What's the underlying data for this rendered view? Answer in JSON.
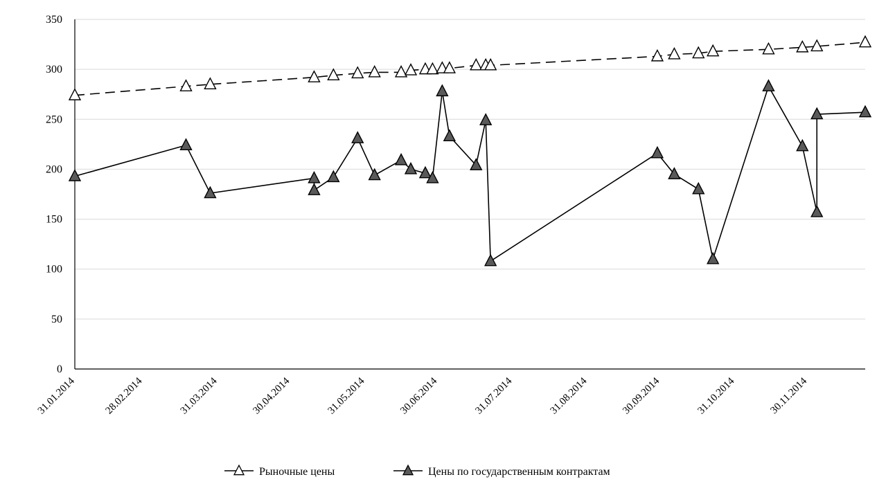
{
  "chart_data": {
    "type": "line",
    "x_axis": {
      "type": "date",
      "tick_labels": [
        "31.01.2014",
        "28.02.2014",
        "31.03.2014",
        "30.04.2014",
        "31.05.2014",
        "30.06.2014",
        "31.07.2014",
        "31.08.2014",
        "30.09.2014",
        "31.10.2014",
        "30.11.2014"
      ]
    },
    "y_axis": {
      "ylim": [
        0,
        350
      ],
      "ticks": [
        0,
        50,
        100,
        150,
        200,
        250,
        300,
        350
      ]
    },
    "grid": true,
    "legend_position": "bottom",
    "series": [
      {
        "name": "Рыночные цены",
        "style": "dashed",
        "marker": "triangle-open",
        "color": "#000000",
        "points": [
          {
            "x": "2014-01-31",
            "y": 274
          },
          {
            "x": "2014-03-18",
            "y": 283
          },
          {
            "x": "2014-03-28",
            "y": 285
          },
          {
            "x": "2014-05-10",
            "y": 292
          },
          {
            "x": "2014-05-18",
            "y": 294
          },
          {
            "x": "2014-05-28",
            "y": 296
          },
          {
            "x": "2014-06-04",
            "y": 297
          },
          {
            "x": "2014-06-15",
            "y": 297
          },
          {
            "x": "2014-06-19",
            "y": 299
          },
          {
            "x": "2014-06-25",
            "y": 300
          },
          {
            "x": "2014-06-28",
            "y": 300
          },
          {
            "x": "2014-07-02",
            "y": 301
          },
          {
            "x": "2014-07-05",
            "y": 301
          },
          {
            "x": "2014-07-16",
            "y": 304
          },
          {
            "x": "2014-07-20",
            "y": 304
          },
          {
            "x": "2014-07-22",
            "y": 304
          },
          {
            "x": "2014-09-29",
            "y": 313
          },
          {
            "x": "2014-10-06",
            "y": 315
          },
          {
            "x": "2014-10-16",
            "y": 316
          },
          {
            "x": "2014-10-22",
            "y": 318
          },
          {
            "x": "2014-11-14",
            "y": 320
          },
          {
            "x": "2014-11-28",
            "y": 322
          },
          {
            "x": "2014-12-04",
            "y": 323
          },
          {
            "x": "2014-12-24",
            "y": 327
          }
        ]
      },
      {
        "name": "Цены по государственным контрактам",
        "style": "solid",
        "marker": "triangle-filled",
        "color": "#5a5a5a",
        "points": [
          {
            "x": "2014-01-31",
            "y": 193
          },
          {
            "x": "2014-03-18",
            "y": 224
          },
          {
            "x": "2014-03-28",
            "y": 176
          },
          {
            "x": "2014-05-10",
            "y": 191
          },
          {
            "x": "2014-05-10",
            "y": 179
          },
          {
            "x": "2014-05-18",
            "y": 192
          },
          {
            "x": "2014-05-28",
            "y": 231
          },
          {
            "x": "2014-06-04",
            "y": 194
          },
          {
            "x": "2014-06-15",
            "y": 209
          },
          {
            "x": "2014-06-19",
            "y": 200
          },
          {
            "x": "2014-06-25",
            "y": 196
          },
          {
            "x": "2014-06-28",
            "y": 191
          },
          {
            "x": "2014-07-02",
            "y": 278
          },
          {
            "x": "2014-07-05",
            "y": 233
          },
          {
            "x": "2014-07-16",
            "y": 204
          },
          {
            "x": "2014-07-20",
            "y": 249
          },
          {
            "x": "2014-07-22",
            "y": 108
          },
          {
            "x": "2014-09-29",
            "y": 216
          },
          {
            "x": "2014-10-06",
            "y": 195
          },
          {
            "x": "2014-10-16",
            "y": 180
          },
          {
            "x": "2014-10-22",
            "y": 110
          },
          {
            "x": "2014-11-14",
            "y": 283
          },
          {
            "x": "2014-11-28",
            "y": 223
          },
          {
            "x": "2014-12-04",
            "y": 157
          },
          {
            "x": "2014-12-04",
            "y": 255
          },
          {
            "x": "2014-12-24",
            "y": 257
          }
        ]
      }
    ]
  }
}
